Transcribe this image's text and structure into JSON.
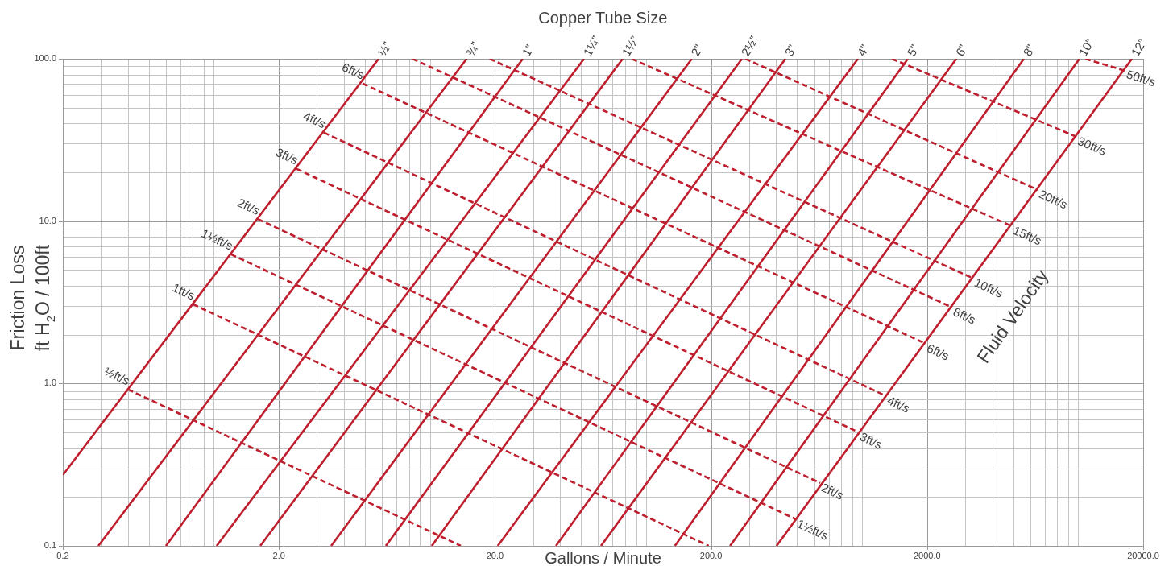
{
  "chart_data": {
    "type": "line",
    "subtitle": "Copper Tube Size",
    "xlabel": "Gallons / Minute",
    "ylabel": "Friction Loss\nft H$_{2}$O / 100ft",
    "annotations": [
      "Fluid Velocity"
    ],
    "log": "xy",
    "grid": true,
    "marker": "none",
    "line_style": "solid",
    "xlim": [
      0.2,
      20000
    ],
    "xticks": [
      0.2,
      {
        "value": 2,
        "label": "2.0"
      },
      {
        "value": 20,
        "label": "20.0"
      },
      {
        "value": 200,
        "label": "200.0"
      },
      {
        "value": 2000,
        "label": "2000.0"
      },
      {
        "value": 20000,
        "label": "20000.0"
      }
    ],
    "ylim": [
      0.1,
      100
    ],
    "yticks": [
      0.1,
      {
        "value": 1,
        "label": "1.0"
      },
      {
        "value": 10,
        "label": "10.0"
      },
      {
        "value": 100,
        "label": "100.0"
      }
    ],
    "series": [
      {
        "name": "½”",
        "color": "#be1e2d",
        "x": [
          0.2,
          5.79
        ],
        "values": [
          0.273,
          100
        ]
      },
      {
        "name": "¾”",
        "color": "#be1e2d",
        "x": [
          0.292,
          14.8
        ],
        "values": [
          0.1,
          100
        ]
      },
      {
        "name": "1”",
        "color": "#be1e2d",
        "x": [
          0.6,
          26.9
        ],
        "values": [
          0.1,
          100
        ]
      },
      {
        "name": "1¼”",
        "color": "#be1e2d",
        "x": [
          1.03,
          51.7
        ],
        "values": [
          0.1,
          100
        ]
      },
      {
        "name": "1½”",
        "color": "#be1e2d",
        "x": [
          1.64,
          78
        ],
        "values": [
          0.1,
          100
        ]
      },
      {
        "name": "2”",
        "color": "#be1e2d",
        "x": [
          3.49,
          163
        ],
        "values": [
          0.1,
          100
        ]
      },
      {
        "name": "2½”",
        "color": "#be1e2d",
        "x": [
          6.25,
          278
        ],
        "values": [
          0.1,
          100
        ]
      },
      {
        "name": "3”",
        "color": "#be1e2d",
        "x": [
          10.2,
          442
        ],
        "values": [
          0.1,
          100
        ]
      },
      {
        "name": "4”",
        "color": "#be1e2d",
        "x": [
          20.6,
          957
        ],
        "values": [
          0.1,
          100
        ]
      },
      {
        "name": "5”",
        "color": "#be1e2d",
        "x": [
          38.3,
          1630
        ],
        "values": [
          0.1,
          100
        ]
      },
      {
        "name": "6”",
        "color": "#be1e2d",
        "x": [
          61.9,
          2730
        ],
        "values": [
          0.1,
          100
        ]
      },
      {
        "name": "8”",
        "color": "#be1e2d",
        "x": [
          136,
          5610
        ],
        "values": [
          0.1,
          100
        ]
      },
      {
        "name": "10”",
        "color": "#be1e2d",
        "x": [
          245,
          10140
        ],
        "values": [
          0.1,
          100
        ]
      },
      {
        "name": "12”",
        "color": "#be1e2d",
        "x": [
          402,
          17740
        ],
        "values": [
          0.1,
          100
        ]
      },
      {
        "name": "½ft/s",
        "color": "#be1e2d",
        "line_style": "dashed",
        "x": [
          0.4,
          13.9
        ],
        "values": [
          0.92,
          0.1
        ]
      },
      {
        "name": "1ft/s",
        "color": "#be1e2d",
        "line_style": "dashed",
        "x": [
          0.8,
          195
        ],
        "values": [
          3.08,
          0.1
        ]
      },
      {
        "name": "1½ft/s",
        "color": "#be1e2d",
        "line_style": "dashed",
        "x": [
          1.2,
          494
        ],
        "values": [
          6.25,
          0.146
        ]
      },
      {
        "name": "2ft/s",
        "color": "#be1e2d",
        "line_style": "dashed",
        "x": [
          1.6,
          640
        ],
        "values": [
          10.3,
          0.244
        ]
      },
      {
        "name": "3ft/s",
        "color": "#be1e2d",
        "line_style": "dashed",
        "x": [
          2.41,
          966
        ],
        "values": [
          21,
          0.5
        ]
      },
      {
        "name": "4ft/s",
        "color": "#be1e2d",
        "line_style": "dashed",
        "x": [
          3.23,
          1294
        ],
        "values": [
          35.1,
          0.837
        ]
      },
      {
        "name": "6ft/s",
        "color": "#be1e2d",
        "line_style": "dashed",
        "x": [
          4.88,
          1968
        ],
        "values": [
          70.4,
          1.76
        ]
      },
      {
        "name": "8ft/s",
        "color": "#be1e2d",
        "line_style": "dashed",
        "x": [
          8.3,
          2612
        ],
        "values": [
          100,
          2.94
        ]
      },
      {
        "name": "10ft/s",
        "color": "#be1e2d",
        "line_style": "dashed",
        "x": [
          18.9,
          3268
        ],
        "values": [
          100,
          4.44
        ]
      },
      {
        "name": "15ft/s",
        "color": "#be1e2d",
        "line_style": "dashed",
        "x": [
          85.8,
          4932
        ],
        "values": [
          100,
          9.31
        ]
      },
      {
        "name": "20ft/s",
        "color": "#be1e2d",
        "line_style": "dashed",
        "x": [
          288,
          6500
        ],
        "values": [
          100,
          15.6
        ]
      },
      {
        "name": "30ft/s",
        "color": "#be1e2d",
        "line_style": "dashed",
        "x": [
          1374,
          9816
        ],
        "values": [
          100,
          33.1
        ]
      },
      {
        "name": "50ft/s",
        "color": "#be1e2d",
        "line_style": "dashed",
        "x": [
          10790,
          16400
        ],
        "values": [
          100,
          84.5
        ]
      }
    ]
  }
}
